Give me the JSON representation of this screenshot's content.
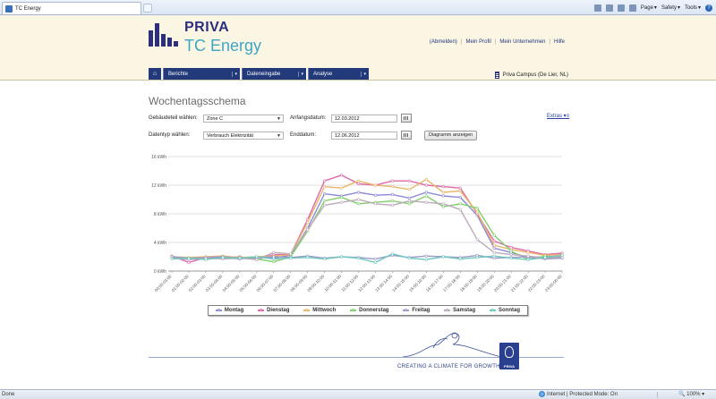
{
  "browser": {
    "tab_title": "TC Energy",
    "commands": [
      "Page",
      "Safety",
      "Tools"
    ],
    "status": "Done",
    "zone": "Internet | Protected Mode: On",
    "zoom": "100%"
  },
  "header": {
    "logo_line1": "PRIVA",
    "logo_line2": "TC Energy",
    "links": [
      "(Abmelden)",
      "Mein Profil",
      "Mein Unternehmen",
      "Hilfe"
    ],
    "nav": [
      "Berichte",
      "Dateneingabe",
      "Analyse"
    ],
    "location": "Priva Campus (De Lier, NL)"
  },
  "main": {
    "title": "Wochentagsschema",
    "extras": "Extras",
    "building_label": "Gebäudeteil wählen:",
    "building_value": "Zone C",
    "datatype_label": "Datentyp wählen:",
    "datatype_value": "Verbrauch Elektrizität",
    "start_label": "Anfangsdatum:",
    "start_value": "12.03.2012",
    "end_label": "Enddatum:",
    "end_value": "12.06.2012",
    "show_button": "Diagramm anzeigen"
  },
  "chart_data": {
    "type": "line",
    "unit": "kWh",
    "ylim": [
      0,
      16
    ],
    "yticks": [
      "0 kWh",
      "4 kWh",
      "8 kWh",
      "12 kWh",
      "16 kWh"
    ],
    "categories": [
      "00:00-01:00",
      "01:00-02:00",
      "02:00-03:00",
      "03:00-04:00",
      "04:00-05:00",
      "05:00-06:00",
      "06:00-07:00",
      "07:00-08:00",
      "08:00-09:00",
      "09:00-10:00",
      "10:00-11:00",
      "11:00-12:00",
      "12:00-13:00",
      "13:00-14:00",
      "14:00-15:00",
      "15:00-16:00",
      "16:00-17:00",
      "17:00-18:00",
      "18:00-19:00",
      "19:00-20:00",
      "20:00-21:00",
      "21:00-22:00",
      "22:00-23:00",
      "23:00-00:00"
    ],
    "series": [
      {
        "name": "Montag",
        "color": "#8a8ad6",
        "values": [
          2.0,
          1.6,
          1.8,
          1.9,
          1.7,
          2.0,
          1.8,
          2.2,
          6.0,
          10.8,
          10.5,
          11.0,
          10.6,
          10.7,
          10.2,
          11.0,
          10.5,
          10.3,
          7.8,
          3.2,
          2.6,
          1.9,
          2.0,
          2.1
        ]
      },
      {
        "name": "Dienstag",
        "color": "#e06aa8",
        "values": [
          2.1,
          1.2,
          1.9,
          1.8,
          2.0,
          1.6,
          2.3,
          2.3,
          7.2,
          12.6,
          13.4,
          12.2,
          12.0,
          12.6,
          12.6,
          12.0,
          11.8,
          11.6,
          8.0,
          4.2,
          3.3,
          2.8,
          2.3,
          2.5
        ]
      },
      {
        "name": "Mittwoch",
        "color": "#e8b46a",
        "values": [
          2.0,
          1.9,
          2.0,
          2.1,
          1.9,
          2.0,
          2.1,
          2.3,
          6.8,
          11.8,
          11.6,
          12.6,
          12.0,
          11.8,
          11.4,
          12.8,
          11.0,
          11.2,
          8.2,
          3.6,
          3.0,
          2.6,
          2.2,
          2.3
        ]
      },
      {
        "name": "Donnerstag",
        "color": "#7fcf6a",
        "values": [
          1.9,
          1.8,
          1.7,
          1.8,
          1.9,
          1.7,
          1.3,
          2.0,
          5.6,
          9.8,
          10.3,
          9.4,
          9.6,
          9.8,
          9.4,
          10.5,
          9.0,
          9.4,
          8.8,
          5.0,
          2.8,
          1.6,
          2.1,
          1.8
        ]
      },
      {
        "name": "Freitag",
        "color": "#9a9ac8",
        "values": [
          2.0,
          1.8,
          1.9,
          2.0,
          1.8,
          1.9,
          2.0,
          1.9,
          2.1,
          1.8,
          2.0,
          1.9,
          1.7,
          2.2,
          1.9,
          2.1,
          2.0,
          1.9,
          2.2,
          1.8,
          1.9,
          2.0,
          1.7,
          1.8
        ]
      },
      {
        "name": "Samstag",
        "color": "#bbaabb",
        "values": [
          1.8,
          1.6,
          1.8,
          1.7,
          1.8,
          1.6,
          2.6,
          2.4,
          5.8,
          9.2,
          9.6,
          10.0,
          9.4,
          9.2,
          9.8,
          9.6,
          9.4,
          8.6,
          4.4,
          2.6,
          2.3,
          2.1,
          1.8,
          2.0
        ]
      },
      {
        "name": "Sonntag",
        "color": "#6ec8c0",
        "values": [
          1.7,
          1.8,
          1.6,
          1.9,
          1.8,
          2.0,
          1.7,
          1.8,
          1.9,
          1.7,
          2.0,
          1.8,
          1.2,
          2.4,
          1.8,
          1.6,
          2.0,
          1.7,
          1.9,
          2.1,
          1.8,
          1.6,
          1.9,
          2.2
        ]
      }
    ]
  },
  "footer": {
    "slogan": "CREATING A CLIMATE FOR GROWTH",
    "badge": "PRIVA"
  }
}
